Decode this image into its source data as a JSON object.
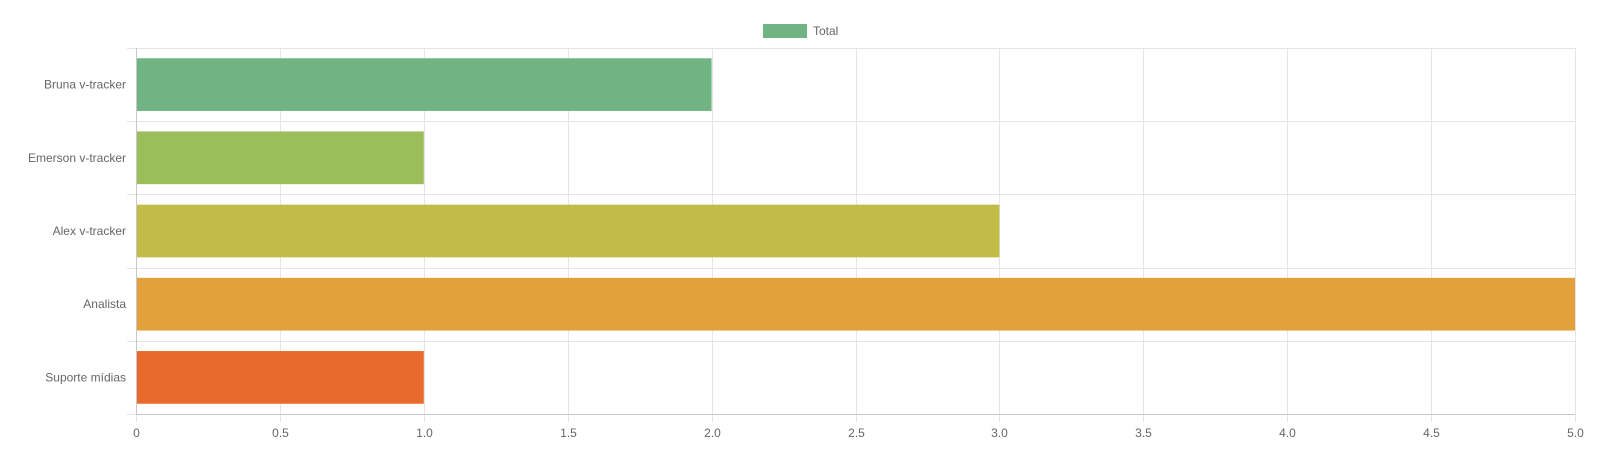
{
  "chart_data": {
    "type": "bar",
    "orientation": "horizontal",
    "categories": [
      "Bruna v-tracker",
      "Emerson v-tracker",
      "Alex v-tracker",
      "Analista",
      "Suporte mídias"
    ],
    "series": [
      {
        "name": "Total",
        "values": [
          2,
          1,
          3,
          5,
          1
        ],
        "colors": [
          "#71b483",
          "#9bbd5a",
          "#c3bb47",
          "#e2a13a",
          "#e86a2d"
        ]
      }
    ],
    "legend": {
      "position": "top",
      "label": "Total",
      "color": "#71b483"
    },
    "xlim": [
      0,
      5
    ],
    "xticks": [
      "0",
      "0.5",
      "1.0",
      "1.5",
      "2.0",
      "2.5",
      "3.0",
      "3.5",
      "4.0",
      "4.5",
      "5.0"
    ],
    "grid": true,
    "grid_color": "#e5e5e5",
    "axis_color": "#c8c8c8"
  }
}
